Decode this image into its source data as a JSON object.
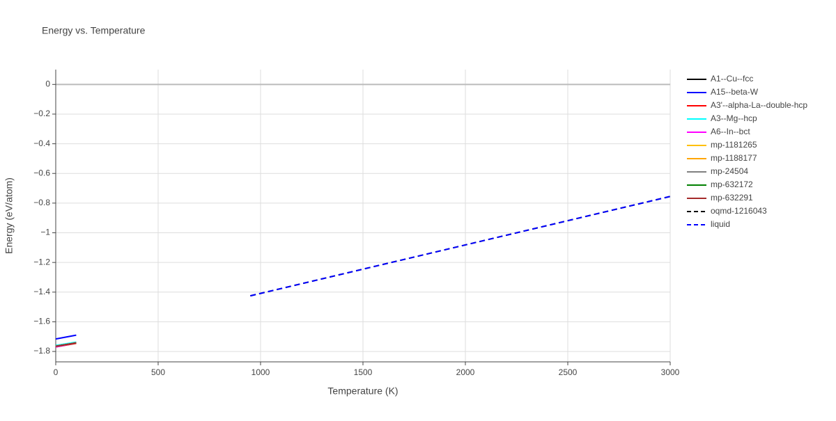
{
  "chart_data": {
    "type": "line",
    "title": "Energy vs. Temperature",
    "xlabel": "Temperature (K)",
    "ylabel": "Energy (eV/atom)",
    "xlim": [
      0,
      3000
    ],
    "ylim": [
      -1.87,
      0.1
    ],
    "xticks": [
      0,
      500,
      1000,
      1500,
      2000,
      2500,
      3000
    ],
    "yticks": [
      0,
      {
        "value": -0.2,
        "label": "−0.2"
      },
      {
        "value": -0.4,
        "label": "−0.4"
      },
      {
        "value": -0.6,
        "label": "−0.6"
      },
      {
        "value": -0.8,
        "label": "−0.8"
      },
      {
        "value": -1,
        "label": "−1"
      },
      {
        "value": -1.2,
        "label": "−1.2"
      },
      {
        "value": -1.4,
        "label": "−1.4"
      },
      {
        "value": -1.6,
        "label": "−1.6"
      },
      {
        "value": -1.8,
        "label": "−1.8"
      }
    ],
    "grid": true,
    "legend": "right",
    "series": [
      {
        "name": "A1--Cu--fcc",
        "color": "#000000",
        "dash": false,
        "x": [
          0,
          100
        ],
        "values": [
          -1.76,
          -1.74
        ]
      },
      {
        "name": "A15--beta-W",
        "color": "#0000ff",
        "dash": false,
        "x": [
          0,
          100
        ],
        "values": [
          -1.716,
          -1.69
        ]
      },
      {
        "name": "A3'--alpha-La--double-hcp",
        "color": "#ff0000",
        "dash": false,
        "x": [
          0,
          100
        ],
        "values": [
          -1.77,
          -1.745
        ]
      },
      {
        "name": "A3--Mg--hcp",
        "color": "#00ffff",
        "dash": false,
        "x": [
          0,
          100
        ],
        "values": [
          -1.76,
          -1.737
        ]
      },
      {
        "name": "A6--In--bct",
        "color": "#ff00ff",
        "dash": false,
        "x": [
          0,
          100
        ],
        "values": [
          -1.77,
          -1.742
        ]
      },
      {
        "name": "mp-1181265",
        "color": "#ffc000",
        "dash": false,
        "x": [
          0,
          100
        ],
        "values": [
          -1.765,
          -1.742
        ]
      },
      {
        "name": "mp-1188177",
        "color": "#ffa500",
        "dash": false,
        "x": [
          0,
          100
        ],
        "values": [
          -1.765,
          -1.742
        ]
      },
      {
        "name": "mp-24504",
        "color": "#808080",
        "dash": false,
        "x": [
          0,
          100
        ],
        "values": [
          -1.765,
          -1.742
        ]
      },
      {
        "name": "mp-632172",
        "color": "#008000",
        "dash": false,
        "x": [
          0,
          100
        ],
        "values": [
          -1.765,
          -1.742
        ]
      },
      {
        "name": "mp-632291",
        "color": "#a52a2a",
        "dash": false,
        "x": [
          0,
          100
        ],
        "values": [
          -1.765,
          -1.742
        ]
      },
      {
        "name": "oqmd-1216043",
        "color": "#000000",
        "dash": true,
        "x": [
          950,
          3000
        ],
        "values": [
          -1.425,
          -0.755
        ]
      },
      {
        "name": "liquid",
        "color": "#0000ff",
        "dash": true,
        "x": [
          950,
          3000
        ],
        "values": [
          -1.425,
          -0.755
        ]
      }
    ]
  }
}
